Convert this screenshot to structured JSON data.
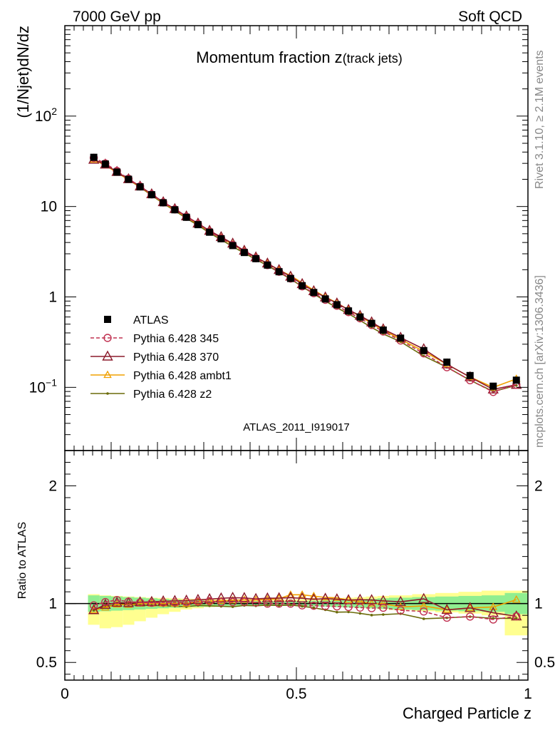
{
  "header": {
    "left": "7000 GeV pp",
    "right": "Soft QCD"
  },
  "side_labels": {
    "rivet": "Rivet 3.1.10, ≥ 2.1M events",
    "mcplots": "mcplots.cern.ch [arXiv:1306.3436]"
  },
  "analysis_id": "ATLAS_2011_I919017",
  "chart_data": [
    {
      "type": "line",
      "title": "Momentum fraction z",
      "title_sub": "(track jets)",
      "ylabel": "(1/Njet)dN/dz",
      "xlabel": "",
      "log_y": true,
      "xlim": [
        0,
        1
      ],
      "ylim": [
        0.02,
        1000
      ],
      "y_ticks": [
        {
          "value": 0.1,
          "base": "10",
          "exp": "−1"
        },
        {
          "value": 1,
          "base": "1",
          "exp": ""
        },
        {
          "value": 10,
          "base": "10",
          "exp": ""
        },
        {
          "value": 100,
          "base": "10",
          "exp": "2"
        }
      ],
      "x": [
        0.0625,
        0.0875,
        0.1125,
        0.1375,
        0.1625,
        0.1875,
        0.2125,
        0.2375,
        0.2625,
        0.2875,
        0.3125,
        0.3375,
        0.3625,
        0.3875,
        0.4125,
        0.4375,
        0.4625,
        0.4875,
        0.5125,
        0.5375,
        0.5625,
        0.5875,
        0.6125,
        0.6375,
        0.6625,
        0.6875,
        0.725,
        0.775,
        0.825,
        0.875,
        0.925,
        0.975
      ],
      "series": [
        {
          "name": "ATLAS",
          "color": "#000000",
          "style": "data",
          "values": [
            35,
            29.5,
            24,
            20,
            16.5,
            13.5,
            11,
            9.2,
            7.6,
            6.3,
            5.2,
            4.4,
            3.7,
            3.1,
            2.65,
            2.25,
            1.9,
            1.6,
            1.33,
            1.12,
            0.95,
            0.82,
            0.7,
            0.6,
            0.51,
            0.43,
            0.35,
            0.255,
            0.19,
            0.135,
            0.103,
            0.12
          ]
        },
        {
          "name": "Pythia 6.428 345",
          "color": "#c03050",
          "style": "dashed-circle",
          "values": [
            34.5,
            29.9,
            24.7,
            20.3,
            16.7,
            13.6,
            11.1,
            9.3,
            7.7,
            6.4,
            5.3,
            4.45,
            3.75,
            3.15,
            2.68,
            2.25,
            1.9,
            1.6,
            1.31,
            1.1,
            0.93,
            0.8,
            0.68,
            0.58,
            0.49,
            0.415,
            0.33,
            0.238,
            0.167,
            0.12,
            0.089,
            0.107
          ]
        },
        {
          "name": "Pythia 6.428 370",
          "color": "#8b1a2b",
          "style": "solid-triangle",
          "values": [
            33,
            29.2,
            24.2,
            20.1,
            16.7,
            13.7,
            11.2,
            9.4,
            7.8,
            6.5,
            5.4,
            4.6,
            3.9,
            3.25,
            2.75,
            2.35,
            1.99,
            1.68,
            1.39,
            1.16,
            0.99,
            0.85,
            0.72,
            0.62,
            0.525,
            0.44,
            0.355,
            0.265,
            0.18,
            0.13,
            0.095,
            0.107
          ]
        },
        {
          "name": "Pythia 6.428 ambt1",
          "color": "#f0a000",
          "style": "solid-triangle-small",
          "values": [
            33,
            28.5,
            23.8,
            19.8,
            16.5,
            13.5,
            11.0,
            9.2,
            7.6,
            6.4,
            5.3,
            4.5,
            3.8,
            3.2,
            2.73,
            2.33,
            1.98,
            1.72,
            1.43,
            1.19,
            1.0,
            0.86,
            0.72,
            0.61,
            0.51,
            0.43,
            0.34,
            0.25,
            0.18,
            0.13,
            0.1,
            0.124
          ]
        },
        {
          "name": "Pythia 6.428 z2",
          "color": "#6b6b0a",
          "style": "solid-dot",
          "values": [
            33,
            28.8,
            23.8,
            19.8,
            16.3,
            13.3,
            10.8,
            9.0,
            7.4,
            6.2,
            5.1,
            4.3,
            3.6,
            3.05,
            2.6,
            2.22,
            1.87,
            1.58,
            1.3,
            1.08,
            0.9,
            0.76,
            0.65,
            0.55,
            0.46,
            0.39,
            0.32,
            0.222,
            0.167,
            0.12,
            0.09,
            0.105
          ]
        }
      ]
    },
    {
      "type": "line",
      "ylabel": "Ratio to ATLAS",
      "xlabel": "Charged Particle z",
      "xlim": [
        0,
        1
      ],
      "ylim": [
        0.35,
        2.3
      ],
      "y_ticks": [
        0.5,
        1,
        2
      ],
      "x_ticks": [
        {
          "value": 0,
          "label": "0"
        },
        {
          "value": 0.5,
          "label": "0.5"
        },
        {
          "value": 1,
          "label": "1"
        }
      ],
      "bin_edges": [
        0.05,
        0.075,
        0.1,
        0.125,
        0.15,
        0.175,
        0.2,
        0.225,
        0.25,
        0.275,
        0.3,
        0.325,
        0.35,
        0.375,
        0.4,
        0.425,
        0.45,
        0.475,
        0.5,
        0.525,
        0.55,
        0.575,
        0.6,
        0.625,
        0.65,
        0.675,
        0.7,
        0.75,
        0.8,
        0.85,
        0.9,
        0.95,
        1.0
      ],
      "band_inner": {
        "color": "#90ee90",
        "half_widths": [
          0.07,
          0.065,
          0.06,
          0.055,
          0.05,
          0.045,
          0.04,
          0.035,
          0.03,
          0.028,
          0.026,
          0.024,
          0.022,
          0.02,
          0.02,
          0.02,
          0.02,
          0.02,
          0.022,
          0.024,
          0.026,
          0.03,
          0.033,
          0.036,
          0.04,
          0.045,
          0.05,
          0.055,
          0.06,
          0.065,
          0.07,
          0.09
        ]
      },
      "band_outer": {
        "color": "#ffff90",
        "lo": [
          0.82,
          0.79,
          0.8,
          0.82,
          0.85,
          0.88,
          0.91,
          0.93,
          0.95,
          0.96,
          0.97,
          0.975,
          0.98,
          0.983,
          0.985,
          0.985,
          0.985,
          0.985,
          0.983,
          0.98,
          0.977,
          0.973,
          0.968,
          0.963,
          0.958,
          0.952,
          0.945,
          0.935,
          0.925,
          0.915,
          0.9,
          0.73
        ],
        "hi": [
          1.08,
          1.07,
          1.065,
          1.06,
          1.055,
          1.05,
          1.048,
          1.045,
          1.042,
          1.04,
          1.038,
          1.036,
          1.035,
          1.034,
          1.034,
          1.034,
          1.034,
          1.036,
          1.038,
          1.04,
          1.042,
          1.046,
          1.05,
          1.055,
          1.06,
          1.065,
          1.07,
          1.08,
          1.09,
          1.1,
          1.11,
          1.11
        ]
      },
      "reference": 1,
      "x": [
        0.0625,
        0.0875,
        0.1125,
        0.1375,
        0.1625,
        0.1875,
        0.2125,
        0.2375,
        0.2625,
        0.2875,
        0.3125,
        0.3375,
        0.3625,
        0.3875,
        0.4125,
        0.4375,
        0.4625,
        0.4875,
        0.5125,
        0.5375,
        0.5625,
        0.5875,
        0.6125,
        0.6375,
        0.6625,
        0.6875,
        0.725,
        0.775,
        0.825,
        0.875,
        0.925,
        0.975
      ],
      "series": [
        {
          "name": "Pythia 6.428 345",
          "color": "#c03050",
          "style": "dashed-circle",
          "values": [
            0.985,
            1.013,
            1.03,
            1.017,
            1.01,
            1.007,
            1.01,
            1.01,
            1.013,
            1.017,
            1.02,
            1.012,
            1.013,
            1.015,
            1.01,
            1.0,
            1.0,
            1.0,
            0.985,
            0.982,
            0.979,
            0.976,
            0.971,
            0.966,
            0.961,
            0.965,
            0.943,
            0.933,
            0.88,
            0.89,
            0.865,
            0.892
          ]
        },
        {
          "name": "Pythia 6.428 370",
          "color": "#8b1a2b",
          "style": "solid-triangle",
          "values": [
            0.945,
            0.99,
            1.008,
            1.005,
            1.012,
            1.015,
            1.02,
            1.023,
            1.026,
            1.032,
            1.038,
            1.045,
            1.05,
            1.048,
            1.04,
            1.045,
            1.047,
            1.05,
            1.045,
            1.036,
            1.042,
            1.037,
            1.03,
            1.033,
            1.03,
            1.023,
            1.015,
            1.04,
            0.947,
            0.963,
            0.922,
            0.892
          ]
        },
        {
          "name": "Pythia 6.428 ambt1",
          "color": "#f0a000",
          "style": "solid-triangle-small",
          "values": [
            0.945,
            0.966,
            0.992,
            0.99,
            1.0,
            1.0,
            1.0,
            1.0,
            1.0,
            1.016,
            1.02,
            1.023,
            1.027,
            1.032,
            1.03,
            1.035,
            1.042,
            1.075,
            1.075,
            1.063,
            1.052,
            1.049,
            1.028,
            1.017,
            1.0,
            1.0,
            0.971,
            0.98,
            0.947,
            0.963,
            0.971,
            1.033
          ]
        },
        {
          "name": "Pythia 6.428 z2",
          "color": "#6b6b0a",
          "style": "solid-dot",
          "values": [
            0.943,
            0.976,
            0.992,
            0.99,
            0.988,
            0.985,
            0.982,
            0.978,
            0.974,
            0.984,
            0.981,
            0.977,
            0.973,
            0.984,
            0.981,
            0.987,
            0.984,
            0.988,
            0.977,
            0.964,
            0.947,
            0.927,
            0.929,
            0.917,
            0.902,
            0.907,
            0.914,
            0.871,
            0.879,
            0.889,
            0.874,
            0.875
          ]
        }
      ]
    }
  ]
}
